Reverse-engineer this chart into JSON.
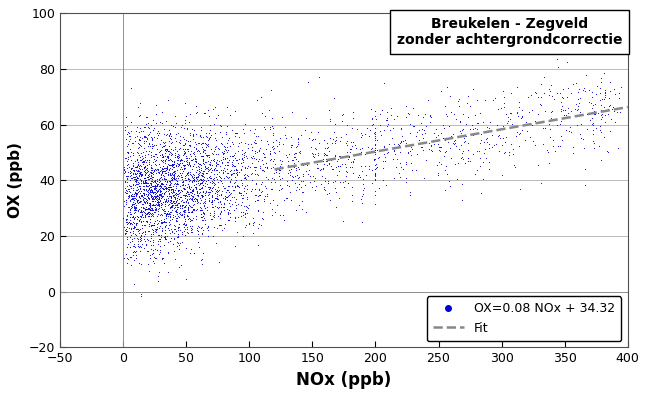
{
  "title_box": "Breukelen - Zegveld\nzonder achtergrondcorrectie",
  "xlabel": "NOx (ppb)",
  "ylabel": "OX (ppb)",
  "xlim": [
    -50,
    400
  ],
  "ylim": [
    -20,
    100
  ],
  "xticks": [
    -50,
    0,
    50,
    100,
    150,
    200,
    250,
    300,
    350,
    400
  ],
  "yticks": [
    -20,
    0,
    20,
    40,
    60,
    80,
    100
  ],
  "fit_slope": 0.08,
  "fit_intercept": 34.32,
  "fit_x_start": 120,
  "fit_x_end": 400,
  "scatter_color": "#0000cc",
  "fit_color": "#888888",
  "legend_label_scatter": "OX=0.08 NOx + 34.32",
  "legend_label_fit": "Fit",
  "n_points": 3500,
  "random_seed": 42,
  "background_color": "#ffffff",
  "plot_bg_color": "#ffffff",
  "grid_color": "#b0b0b0",
  "xlabel_fontsize": 12,
  "ylabel_fontsize": 11,
  "tick_fontsize": 9,
  "annotation_fontsize": 10,
  "legend_fontsize": 9
}
